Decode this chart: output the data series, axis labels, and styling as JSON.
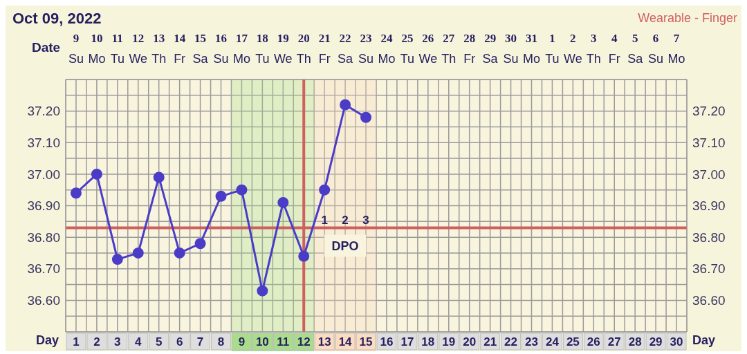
{
  "chart_data": {
    "type": "line",
    "title": "Oct 09, 2022",
    "xlabel": "Day",
    "x2label": "Date",
    "annotations": [
      "Wearable - Finger",
      "1",
      "2",
      "3",
      "DPO"
    ],
    "x": [
      1,
      2,
      3,
      4,
      5,
      6,
      7,
      8,
      9,
      10,
      11,
      12,
      13,
      14,
      15
    ],
    "series": [
      {
        "color": "#4b3cc8",
        "values": [
          36.94,
          37.0,
          36.73,
          36.75,
          36.99,
          36.75,
          36.78,
          36.93,
          36.95,
          36.63,
          36.91,
          36.74,
          36.95,
          37.22,
          37.18
        ]
      }
    ],
    "marker": "circle",
    "line_style": "solid",
    "grid": true,
    "xlim": [
      0.5,
      30.5
    ],
    "xticks": [
      1,
      2,
      3,
      4,
      5,
      6,
      7,
      8,
      9,
      10,
      11,
      12,
      13,
      14,
      15,
      16,
      17,
      18,
      19,
      20,
      21,
      22,
      23,
      24,
      25,
      26,
      27,
      28,
      29,
      30,
      {
        "value": 1.5,
        "label": null
      },
      {
        "value": 2.5,
        "label": null
      },
      {
        "value": 3.5,
        "label": null
      },
      {
        "value": 4.5,
        "label": null
      },
      {
        "value": 5.5,
        "label": null
      },
      {
        "value": 6.5,
        "label": null
      },
      {
        "value": 7.5,
        "label": null
      },
      {
        "value": 8.5,
        "label": null
      },
      {
        "value": 9.5,
        "label": null
      },
      {
        "value": 10.5,
        "label": null
      },
      {
        "value": 11.5,
        "label": null
      },
      {
        "value": 12.5,
        "label": null
      },
      {
        "value": 13.5,
        "label": null
      },
      {
        "value": 14.5,
        "label": null
      },
      {
        "value": 15.5,
        "label": null
      },
      {
        "value": 16.5,
        "label": null
      },
      {
        "value": 17.5,
        "label": null
      },
      {
        "value": 18.5,
        "label": null
      },
      {
        "value": 19.5,
        "label": null
      },
      {
        "value": 20.5,
        "label": null
      },
      {
        "value": 21.5,
        "label": null
      },
      {
        "value": 22.5,
        "label": null
      },
      {
        "value": 23.5,
        "label": null
      },
      {
        "value": 24.5,
        "label": null
      },
      {
        "value": 25.5,
        "label": null
      },
      {
        "value": 26.5,
        "label": null
      },
      {
        "value": 27.5,
        "label": null
      },
      {
        "value": 28.5,
        "label": null
      },
      {
        "value": 29.5,
        "label": null
      }
    ],
    "x2lim": [
      "2022-10-08T12:00",
      "2022-11-07T12:00"
    ],
    "x2ticks": [
      {
        "value": "2022-10-09",
        "label": "9\nSu"
      },
      {
        "value": "2022-10-10",
        "label": "10\nMo"
      },
      {
        "value": "2022-10-11",
        "label": "11\nTu"
      },
      {
        "value": "2022-10-12",
        "label": "12\nWe"
      },
      {
        "value": "2022-10-13",
        "label": "13\nTh"
      },
      {
        "value": "2022-10-14",
        "label": "14\nFr"
      },
      {
        "value": "2022-10-15",
        "label": "15\nSa"
      },
      {
        "value": "2022-10-16",
        "label": "16\nSu"
      },
      {
        "value": "2022-10-17",
        "label": "17\nMo"
      },
      {
        "value": "2022-10-18",
        "label": "18\nTu"
      },
      {
        "value": "2022-10-19",
        "label": "19\nWe"
      },
      {
        "value": "2022-10-20",
        "label": "20\nTh"
      },
      {
        "value": "2022-10-21",
        "label": "21\nFr"
      },
      {
        "value": "2022-10-22",
        "label": "22\nSa"
      },
      {
        "value": "2022-10-23",
        "label": "23\nSu"
      },
      {
        "value": "2022-10-24",
        "label": "24\nMo"
      },
      {
        "value": "2022-10-25",
        "label": "25\nTu"
      },
      {
        "value": "2022-10-26",
        "label": "26\nWe"
      },
      {
        "value": "2022-10-27",
        "label": "27\nTh"
      },
      {
        "value": "2022-10-28",
        "label": "28\nFr"
      },
      {
        "value": "2022-10-29",
        "label": "29\nSa"
      },
      {
        "value": "2022-10-30",
        "label": "30\nSu"
      },
      {
        "value": "2022-10-31",
        "label": "31\nMo"
      },
      {
        "value": "2022-11-01",
        "label": "1\nTu"
      },
      {
        "value": "2022-11-02",
        "label": "2\nWe"
      },
      {
        "value": "2022-11-03",
        "label": "3\nTh"
      },
      {
        "value": "2022-11-04",
        "label": "4\nFr"
      },
      {
        "value": "2022-11-05",
        "label": "5\nSa"
      },
      {
        "value": "2022-11-06",
        "label": "6\nSu"
      },
      {
        "value": "2022-11-07",
        "label": "7\nMo"
      }
    ],
    "ylim": [
      36.5,
      37.3
    ],
    "yticks": [
      {
        "value": 36.55,
        "label": null
      },
      {
        "value": 36.6,
        "label": "36.60"
      },
      {
        "value": 36.65,
        "label": null
      },
      {
        "value": 36.7,
        "label": "36.70"
      },
      {
        "value": 36.75,
        "label": null
      },
      {
        "value": 36.8,
        "label": "36.80"
      },
      {
        "value": 36.85,
        "label": null
      },
      {
        "value": 36.9,
        "label": "36.90"
      },
      {
        "value": 36.95,
        "label": null
      },
      {
        "value": 37.0,
        "label": "37.00"
      },
      {
        "value": 37.05,
        "label": null
      },
      {
        "value": 37.1,
        "label": "37.10"
      },
      {
        "value": 37.15,
        "label": null
      },
      {
        "value": 37.2,
        "label": "37.20"
      },
      {
        "value": 37.25,
        "label": null
      }
    ],
    "y2lim": [
      36.5,
      37.3
    ],
    "y2ticks": [
      {
        "value": 36.55,
        "label": null
      },
      {
        "value": 36.6,
        "label": "36.60"
      },
      {
        "value": 36.65,
        "label": null
      },
      {
        "value": 36.7,
        "label": "36.70"
      },
      {
        "value": 36.75,
        "label": null
      },
      {
        "value": 36.8,
        "label": "36.80"
      },
      {
        "value": 36.85,
        "label": null
      },
      {
        "value": 36.9,
        "label": "36.90"
      },
      {
        "value": 36.95,
        "label": null
      },
      {
        "value": 37.0,
        "label": "37.00"
      },
      {
        "value": 37.05,
        "label": null
      },
      {
        "value": 37.1,
        "label": "37.10"
      },
      {
        "value": 37.15,
        "label": null
      },
      {
        "value": 37.2,
        "label": "37.20"
      },
      {
        "value": 37.25,
        "label": null
      }
    ],
    "ref_lines": [
      {
        "axis": "y",
        "value": 36.83,
        "color": "#d06060"
      },
      {
        "axis": "x",
        "value": 12,
        "color": "#d06060"
      }
    ],
    "bands": [
      {
        "axis": "x",
        "from": 8.5,
        "to": 12.5,
        "color": "#a9dd8c"
      },
      {
        "axis": "x",
        "from": 12.5,
        "to": 15.5,
        "color": "#fbdcc0"
      }
    ]
  }
}
